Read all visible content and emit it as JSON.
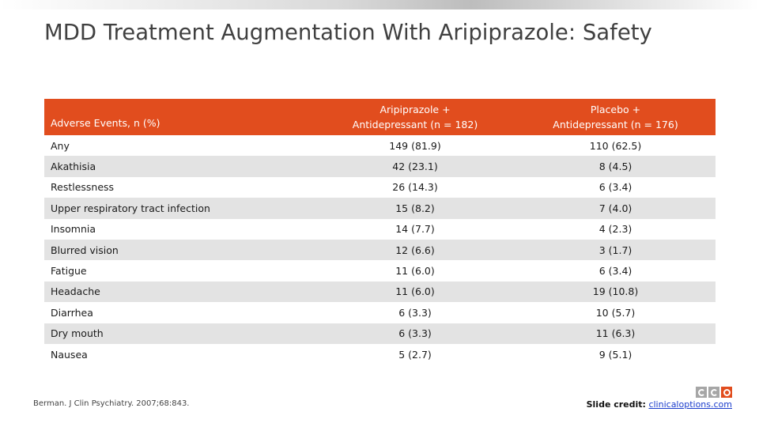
{
  "slide": {
    "title": "MDD Treatment Augmentation With Aripiprazole: Safety"
  },
  "table": {
    "headers": [
      {
        "label": "Adverse Events, n (%)"
      },
      {
        "line1": "Aripiprazole +",
        "line2": "Antidepressant (n = 182)"
      },
      {
        "line1": "Placebo +",
        "line2": "Antidepressant  (n = 176)"
      }
    ],
    "rows": [
      {
        "event": "Any",
        "aripiprazole": "149 (81.9)",
        "placebo": "110 (62.5)"
      },
      {
        "event": "Akathisia",
        "aripiprazole": "42 (23.1)",
        "placebo": "8 (4.5)"
      },
      {
        "event": "Restlessness",
        "aripiprazole": "26 (14.3)",
        "placebo": "6 (3.4)"
      },
      {
        "event": "Upper respiratory tract infection",
        "aripiprazole": "15 (8.2)",
        "placebo": "7 (4.0)"
      },
      {
        "event": "Insomnia",
        "aripiprazole": "14 (7.7)",
        "placebo": "4 (2.3)"
      },
      {
        "event": "Blurred vision",
        "aripiprazole": "12 (6.6)",
        "placebo": "3 (1.7)"
      },
      {
        "event": "Fatigue",
        "aripiprazole": "11 (6.0)",
        "placebo": "6 (3.4)"
      },
      {
        "event": "Headache",
        "aripiprazole": "11 (6.0)",
        "placebo": "19 (10.8)"
      },
      {
        "event": "Diarrhea",
        "aripiprazole": "6 (3.3)",
        "placebo": "10 (5.7)"
      },
      {
        "event": "Dry mouth",
        "aripiprazole": "6 (3.3)",
        "placebo": "11 (6.3)"
      },
      {
        "event": "Nausea",
        "aripiprazole": "5 (2.7)",
        "placebo": "9 (5.1)"
      }
    ]
  },
  "footer": {
    "citation": "Berman. J Clin Psychiatry. 2007;68:843.",
    "credit_label": "Slide credit:",
    "credit_link": "clinicaloptions.com"
  },
  "logo": {
    "icon": "cco-logo-icon"
  },
  "colors": {
    "accent": "#e14d1e",
    "stripe": "#e3e3e3",
    "title": "#404040",
    "link": "#1a3ccc"
  }
}
